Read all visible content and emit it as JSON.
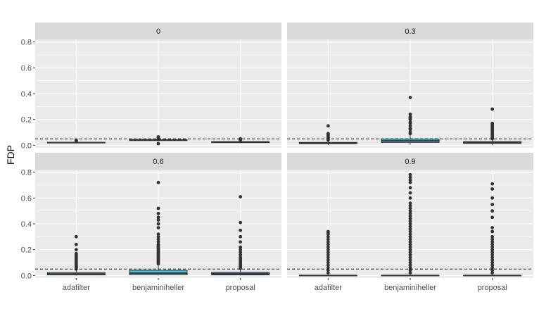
{
  "chart_data": {
    "type": "boxplot",
    "ylabel": "FDP",
    "xlabel": "",
    "ylim": [
      -0.02,
      0.82
    ],
    "yticks": [
      0.0,
      0.2,
      0.4,
      0.6,
      0.8
    ],
    "ytick_labels": [
      "0.0",
      "0.2",
      "0.4",
      "0.6",
      "0.8"
    ],
    "reference_line": 0.05,
    "categories": [
      "adafilter",
      "benjaminiheller",
      "proposal"
    ],
    "colors": {
      "adafilter": "#7FFFD4",
      "benjaminiheller": "#3DC8E8",
      "proposal": "#3A8FD8",
      "panel_bg": "#EBEBEB",
      "strip_bg": "#D9D9D9",
      "grid": "#FFFFFF",
      "points": "#333333"
    },
    "panels": [
      {
        "label": "0",
        "boxes": [
          {
            "q1": 0.018,
            "median": 0.02,
            "q3": 0.022,
            "whisker_low": 0.014,
            "whisker_high": 0.028,
            "outliers": [
              0.03,
              0.035,
              0.038
            ]
          },
          {
            "q1": 0.036,
            "median": 0.04,
            "q3": 0.044,
            "whisker_low": 0.028,
            "whisker_high": 0.052,
            "outliers": [
              0.012,
              0.055,
              0.06,
              0.065
            ]
          },
          {
            "q1": 0.02,
            "median": 0.024,
            "q3": 0.028,
            "whisker_low": 0.016,
            "whisker_high": 0.036,
            "outliers": [
              0.04,
              0.045,
              0.05
            ]
          }
        ]
      },
      {
        "label": "0.3",
        "boxes": [
          {
            "q1": 0.012,
            "median": 0.016,
            "q3": 0.022,
            "whisker_low": 0.002,
            "whisker_high": 0.032,
            "outliers": [
              0.04,
              0.05,
              0.06,
              0.07,
              0.08,
              0.09,
              0.15
            ]
          },
          {
            "q1": 0.022,
            "median": 0.034,
            "q3": 0.048,
            "whisker_low": 0.004,
            "whisker_high": 0.085,
            "outliers": [
              0.09,
              0.1,
              0.12,
              0.13,
              0.15,
              0.17,
              0.18,
              0.2,
              0.21,
              0.22,
              0.24,
              0.37
            ]
          },
          {
            "q1": 0.014,
            "median": 0.02,
            "q3": 0.028,
            "whisker_low": 0.002,
            "whisker_high": 0.045,
            "outliers": [
              0.05,
              0.06,
              0.07,
              0.08,
              0.09,
              0.1,
              0.11,
              0.12,
              0.13,
              0.14,
              0.15,
              0.16,
              0.17,
              0.28
            ]
          }
        ]
      },
      {
        "label": "0.6",
        "boxes": [
          {
            "q1": 0.004,
            "median": 0.012,
            "q3": 0.022,
            "whisker_low": 0.0,
            "whisker_high": 0.045,
            "outliers": [
              0.05,
              0.06,
              0.07,
              0.08,
              0.09,
              0.1,
              0.11,
              0.12,
              0.13,
              0.14,
              0.15,
              0.16,
              0.17,
              0.2,
              0.24,
              0.3
            ]
          },
          {
            "q1": 0.005,
            "median": 0.018,
            "q3": 0.04,
            "whisker_low": 0.0,
            "whisker_high": 0.085,
            "outliers": [
              0.09,
              0.1,
              0.11,
              0.12,
              0.13,
              0.14,
              0.15,
              0.16,
              0.17,
              0.18,
              0.19,
              0.2,
              0.21,
              0.22,
              0.23,
              0.24,
              0.26,
              0.28,
              0.3,
              0.32,
              0.37,
              0.4,
              0.43,
              0.45,
              0.48,
              0.52,
              0.72
            ]
          },
          {
            "q1": 0.004,
            "median": 0.012,
            "q3": 0.024,
            "whisker_low": 0.0,
            "whisker_high": 0.05,
            "outliers": [
              0.055,
              0.06,
              0.07,
              0.08,
              0.09,
              0.1,
              0.11,
              0.12,
              0.13,
              0.14,
              0.16,
              0.18,
              0.2,
              0.22,
              0.26,
              0.3,
              0.35,
              0.41,
              0.61
            ]
          }
        ]
      },
      {
        "label": "0.9",
        "boxes": [
          {
            "q1": 0.0,
            "median": 0.0,
            "q3": 0.0,
            "whisker_low": 0.0,
            "whisker_high": 0.0,
            "outliers": [
              0.02,
              0.04,
              0.06,
              0.08,
              0.1,
              0.12,
              0.14,
              0.16,
              0.18,
              0.2,
              0.22,
              0.24,
              0.26,
              0.28,
              0.3,
              0.32,
              0.33,
              0.34
            ]
          },
          {
            "q1": 0.0,
            "median": 0.0,
            "q3": 0.0,
            "whisker_low": 0.0,
            "whisker_high": 0.0,
            "outliers": [
              0.02,
              0.04,
              0.06,
              0.08,
              0.1,
              0.12,
              0.14,
              0.16,
              0.18,
              0.2,
              0.22,
              0.24,
              0.26,
              0.28,
              0.3,
              0.32,
              0.34,
              0.36,
              0.38,
              0.4,
              0.42,
              0.44,
              0.46,
              0.48,
              0.5,
              0.52,
              0.54,
              0.56,
              0.6,
              0.64,
              0.68,
              0.72,
              0.74,
              0.76,
              0.78
            ]
          },
          {
            "q1": 0.0,
            "median": 0.0,
            "q3": 0.0,
            "whisker_low": 0.0,
            "whisker_high": 0.0,
            "outliers": [
              0.02,
              0.04,
              0.06,
              0.08,
              0.1,
              0.12,
              0.14,
              0.16,
              0.18,
              0.2,
              0.22,
              0.24,
              0.26,
              0.28,
              0.3,
              0.34,
              0.37,
              0.45,
              0.5,
              0.55,
              0.6,
              0.67,
              0.71
            ]
          }
        ]
      }
    ]
  }
}
